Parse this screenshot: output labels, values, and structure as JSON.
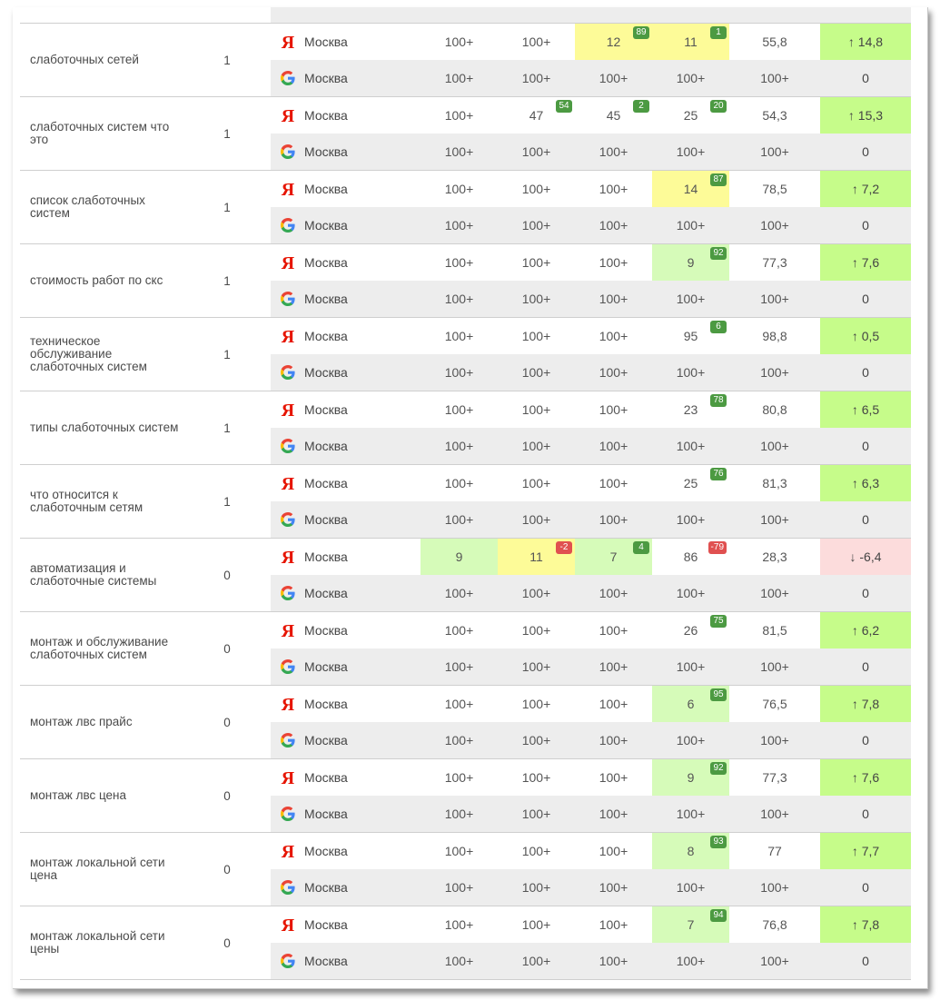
{
  "colors": {
    "yellow": "#fdfb98",
    "light_green": "#d6fbb9",
    "up_green": "#c6fc8a",
    "down_red": "#fcdcdc",
    "badge_green": "#4c9a42",
    "badge_red": "#e05050"
  },
  "rows": [
    {
      "keyword": "слаботочных сетей",
      "count": "1",
      "yandex": {
        "city": "Москва",
        "cells": [
          {
            "v": "100+"
          },
          {
            "v": "100+"
          },
          {
            "v": "12",
            "bg": "yellow",
            "badge": "89"
          },
          {
            "v": "11",
            "bg": "yellow",
            "badge": "1"
          }
        ],
        "avg": "55,8",
        "delta": "↑ 14,8",
        "dir": "up"
      },
      "google": {
        "city": "Москва",
        "cells": [
          {
            "v": "100+"
          },
          {
            "v": "100+"
          },
          {
            "v": "100+"
          },
          {
            "v": "100+"
          }
        ],
        "avg": "100+",
        "delta": "0"
      }
    },
    {
      "keyword": "слаботочных систем что это",
      "count": "1",
      "yandex": {
        "city": "Москва",
        "cells": [
          {
            "v": "100+"
          },
          {
            "v": "47",
            "badge": "54"
          },
          {
            "v": "45",
            "badge": "2"
          },
          {
            "v": "25",
            "badge": "20"
          }
        ],
        "avg": "54,3",
        "delta": "↑ 15,3",
        "dir": "up"
      },
      "google": {
        "city": "Москва",
        "cells": [
          {
            "v": "100+"
          },
          {
            "v": "100+"
          },
          {
            "v": "100+"
          },
          {
            "v": "100+"
          }
        ],
        "avg": "100+",
        "delta": "0"
      }
    },
    {
      "keyword": "список слаботочных систем",
      "count": "1",
      "yandex": {
        "city": "Москва",
        "cells": [
          {
            "v": "100+"
          },
          {
            "v": "100+"
          },
          {
            "v": "100+"
          },
          {
            "v": "14",
            "bg": "yellow",
            "badge": "87"
          }
        ],
        "avg": "78,5",
        "delta": "↑ 7,2",
        "dir": "up"
      },
      "google": {
        "city": "Москва",
        "cells": [
          {
            "v": "100+"
          },
          {
            "v": "100+"
          },
          {
            "v": "100+"
          },
          {
            "v": "100+"
          }
        ],
        "avg": "100+",
        "delta": "0"
      }
    },
    {
      "keyword": "стоимость работ по скс",
      "count": "1",
      "yandex": {
        "city": "Москва",
        "cells": [
          {
            "v": "100+"
          },
          {
            "v": "100+"
          },
          {
            "v": "100+"
          },
          {
            "v": "9",
            "bg": "light_green",
            "badge": "92"
          }
        ],
        "avg": "77,3",
        "delta": "↑ 7,6",
        "dir": "up"
      },
      "google": {
        "city": "Москва",
        "cells": [
          {
            "v": "100+"
          },
          {
            "v": "100+"
          },
          {
            "v": "100+"
          },
          {
            "v": "100+"
          }
        ],
        "avg": "100+",
        "delta": "0"
      }
    },
    {
      "keyword": "техническое обслуживание слаботочных систем",
      "count": "1",
      "yandex": {
        "city": "Москва",
        "cells": [
          {
            "v": "100+"
          },
          {
            "v": "100+"
          },
          {
            "v": "100+"
          },
          {
            "v": "95",
            "badge": "6"
          }
        ],
        "avg": "98,8",
        "delta": "↑ 0,5",
        "dir": "up"
      },
      "google": {
        "city": "Москва",
        "cells": [
          {
            "v": "100+"
          },
          {
            "v": "100+"
          },
          {
            "v": "100+"
          },
          {
            "v": "100+"
          }
        ],
        "avg": "100+",
        "delta": "0"
      }
    },
    {
      "keyword": "типы слаботочных систем",
      "count": "1",
      "yandex": {
        "city": "Москва",
        "cells": [
          {
            "v": "100+"
          },
          {
            "v": "100+"
          },
          {
            "v": "100+"
          },
          {
            "v": "23",
            "badge": "78"
          }
        ],
        "avg": "80,8",
        "delta": "↑ 6,5",
        "dir": "up"
      },
      "google": {
        "city": "Москва",
        "cells": [
          {
            "v": "100+"
          },
          {
            "v": "100+"
          },
          {
            "v": "100+"
          },
          {
            "v": "100+"
          }
        ],
        "avg": "100+",
        "delta": "0"
      }
    },
    {
      "keyword": "что относится к слаботочным сетям",
      "count": "1",
      "yandex": {
        "city": "Москва",
        "cells": [
          {
            "v": "100+"
          },
          {
            "v": "100+"
          },
          {
            "v": "100+"
          },
          {
            "v": "25",
            "badge": "76"
          }
        ],
        "avg": "81,3",
        "delta": "↑ 6,3",
        "dir": "up"
      },
      "google": {
        "city": "Москва",
        "cells": [
          {
            "v": "100+"
          },
          {
            "v": "100+"
          },
          {
            "v": "100+"
          },
          {
            "v": "100+"
          }
        ],
        "avg": "100+",
        "delta": "0"
      }
    },
    {
      "keyword": "автоматизация и слаботочные системы",
      "count": "0",
      "yandex": {
        "city": "Москва",
        "cells": [
          {
            "v": "9",
            "bg": "light_green"
          },
          {
            "v": "11",
            "bg": "yellow",
            "badge": "-2",
            "neg": true
          },
          {
            "v": "7",
            "bg": "light_green",
            "badge": "4"
          },
          {
            "v": "86",
            "badge": "-79",
            "neg": true
          }
        ],
        "avg": "28,3",
        "delta": "↓ -6,4",
        "dir": "down"
      },
      "google": {
        "city": "Москва",
        "cells": [
          {
            "v": "100+"
          },
          {
            "v": "100+"
          },
          {
            "v": "100+"
          },
          {
            "v": "100+"
          }
        ],
        "avg": "100+",
        "delta": "0"
      }
    },
    {
      "keyword": "монтаж и обслуживание слаботочных систем",
      "count": "0",
      "yandex": {
        "city": "Москва",
        "cells": [
          {
            "v": "100+"
          },
          {
            "v": "100+"
          },
          {
            "v": "100+"
          },
          {
            "v": "26",
            "badge": "75"
          }
        ],
        "avg": "81,5",
        "delta": "↑ 6,2",
        "dir": "up"
      },
      "google": {
        "city": "Москва",
        "cells": [
          {
            "v": "100+"
          },
          {
            "v": "100+"
          },
          {
            "v": "100+"
          },
          {
            "v": "100+"
          }
        ],
        "avg": "100+",
        "delta": "0"
      }
    },
    {
      "keyword": "монтаж лвс прайс",
      "count": "0",
      "yandex": {
        "city": "Москва",
        "cells": [
          {
            "v": "100+"
          },
          {
            "v": "100+"
          },
          {
            "v": "100+"
          },
          {
            "v": "6",
            "bg": "light_green",
            "badge": "95"
          }
        ],
        "avg": "76,5",
        "delta": "↑ 7,8",
        "dir": "up"
      },
      "google": {
        "city": "Москва",
        "cells": [
          {
            "v": "100+"
          },
          {
            "v": "100+"
          },
          {
            "v": "100+"
          },
          {
            "v": "100+"
          }
        ],
        "avg": "100+",
        "delta": "0"
      }
    },
    {
      "keyword": "монтаж лвс цена",
      "count": "0",
      "yandex": {
        "city": "Москва",
        "cells": [
          {
            "v": "100+"
          },
          {
            "v": "100+"
          },
          {
            "v": "100+"
          },
          {
            "v": "9",
            "bg": "light_green",
            "badge": "92"
          }
        ],
        "avg": "77,3",
        "delta": "↑ 7,6",
        "dir": "up"
      },
      "google": {
        "city": "Москва",
        "cells": [
          {
            "v": "100+"
          },
          {
            "v": "100+"
          },
          {
            "v": "100+"
          },
          {
            "v": "100+"
          }
        ],
        "avg": "100+",
        "delta": "0"
      }
    },
    {
      "keyword": "монтаж локальной сети цена",
      "count": "0",
      "yandex": {
        "city": "Москва",
        "cells": [
          {
            "v": "100+"
          },
          {
            "v": "100+"
          },
          {
            "v": "100+"
          },
          {
            "v": "8",
            "bg": "light_green",
            "badge": "93"
          }
        ],
        "avg": "77",
        "delta": "↑ 7,7",
        "dir": "up"
      },
      "google": {
        "city": "Москва",
        "cells": [
          {
            "v": "100+"
          },
          {
            "v": "100+"
          },
          {
            "v": "100+"
          },
          {
            "v": "100+"
          }
        ],
        "avg": "100+",
        "delta": "0"
      }
    },
    {
      "keyword": "монтаж локальной сети цены",
      "count": "0",
      "yandex": {
        "city": "Москва",
        "cells": [
          {
            "v": "100+"
          },
          {
            "v": "100+"
          },
          {
            "v": "100+"
          },
          {
            "v": "7",
            "bg": "light_green",
            "badge": "94"
          }
        ],
        "avg": "76,8",
        "delta": "↑ 7,8",
        "dir": "up"
      },
      "google": {
        "city": "Москва",
        "cells": [
          {
            "v": "100+"
          },
          {
            "v": "100+"
          },
          {
            "v": "100+"
          },
          {
            "v": "100+"
          }
        ],
        "avg": "100+",
        "delta": "0"
      }
    }
  ]
}
